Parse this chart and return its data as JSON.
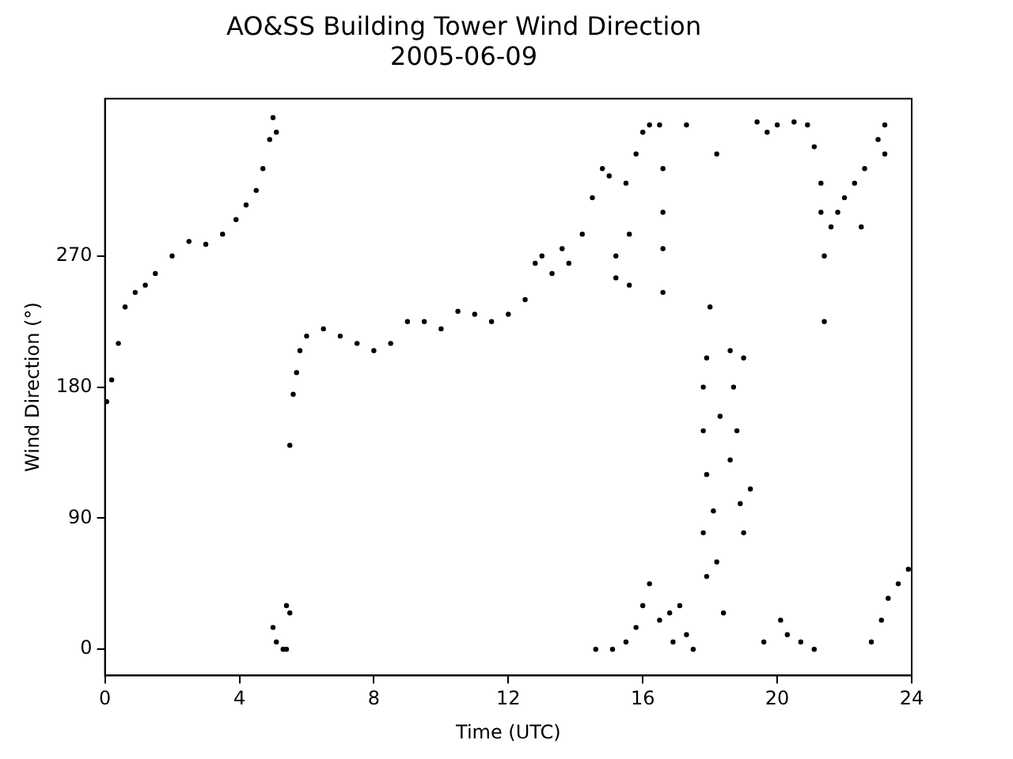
{
  "chart_data": {
    "type": "scatter",
    "title": "AO&SS Building Tower Wind Direction",
    "subtitle": "2005-06-09",
    "xlabel": "Time (UTC)",
    "ylabel": "Wind Direction (°)",
    "xlim": [
      0,
      24
    ],
    "xticks": [
      0,
      4,
      8,
      12,
      16,
      20,
      24
    ],
    "ylim": [
      -18,
      378
    ],
    "yticks": [
      0,
      90,
      180,
      270
    ],
    "grid": false,
    "legend": false,
    "marker": "circle",
    "series": [
      {
        "color": "#000000",
        "x": [
          0.05,
          0.2,
          0.4,
          0.6,
          0.9,
          1.2,
          1.5,
          2.0,
          2.5,
          3.0,
          3.5,
          3.9,
          4.2,
          4.5,
          4.7,
          4.9,
          5.0,
          5.1,
          5.0,
          5.1,
          5.3,
          5.4,
          5.4,
          5.5,
          5.5,
          5.6,
          5.7,
          5.8,
          6.0,
          6.5,
          7.0,
          7.5,
          8.0,
          8.5,
          9.0,
          9.5,
          10.0,
          10.5,
          11.0,
          11.5,
          12.0,
          12.5,
          12.8,
          13.0,
          13.3,
          13.6,
          13.8,
          14.2,
          14.5,
          14.8,
          15.0,
          15.5,
          15.8,
          16.0,
          16.2,
          15.2,
          15.2,
          15.6,
          15.6,
          16.5,
          16.6,
          16.6,
          16.6,
          16.6,
          17.3,
          18.2,
          18.0,
          17.9,
          17.8,
          17.8,
          17.9,
          18.1,
          17.8,
          18.2,
          18.4,
          18.6,
          18.7,
          18.8,
          19.0,
          19.2,
          18.9,
          19.0,
          18.6,
          18.3,
          17.9,
          14.6,
          15.1,
          15.5,
          15.8,
          16.0,
          16.2,
          16.5,
          16.8,
          17.1,
          17.3,
          16.9,
          17.5,
          19.4,
          19.7,
          20.0,
          20.5,
          20.9,
          21.1,
          21.3,
          21.3,
          21.4,
          21.4,
          21.6,
          21.8,
          22.0,
          22.3,
          22.5,
          22.6,
          23.0,
          23.2,
          23.2,
          19.6,
          20.1,
          20.3,
          20.7,
          21.1,
          22.8,
          23.1,
          23.3,
          23.6,
          23.9
        ],
        "values": [
          170,
          185,
          210,
          235,
          245,
          250,
          258,
          270,
          280,
          278,
          285,
          295,
          305,
          315,
          330,
          350,
          365,
          355,
          15,
          5,
          0,
          30,
          0,
          25,
          140,
          175,
          190,
          205,
          215,
          220,
          215,
          210,
          205,
          210,
          225,
          225,
          220,
          232,
          230,
          225,
          230,
          240,
          265,
          270,
          258,
          275,
          265,
          285,
          310,
          330,
          325,
          320,
          340,
          355,
          360,
          255,
          270,
          285,
          250,
          360,
          330,
          300,
          245,
          275,
          360,
          340,
          235,
          200,
          180,
          150,
          120,
          95,
          80,
          60,
          25,
          205,
          180,
          150,
          200,
          110,
          100,
          80,
          130,
          160,
          50,
          0,
          0,
          5,
          15,
          30,
          45,
          20,
          25,
          30,
          10,
          5,
          0,
          362,
          355,
          360,
          362,
          360,
          345,
          320,
          300,
          270,
          225,
          290,
          300,
          310,
          320,
          290,
          330,
          350,
          340,
          360,
          5,
          20,
          10,
          5,
          0,
          5,
          20,
          35,
          45,
          55
        ]
      }
    ]
  }
}
